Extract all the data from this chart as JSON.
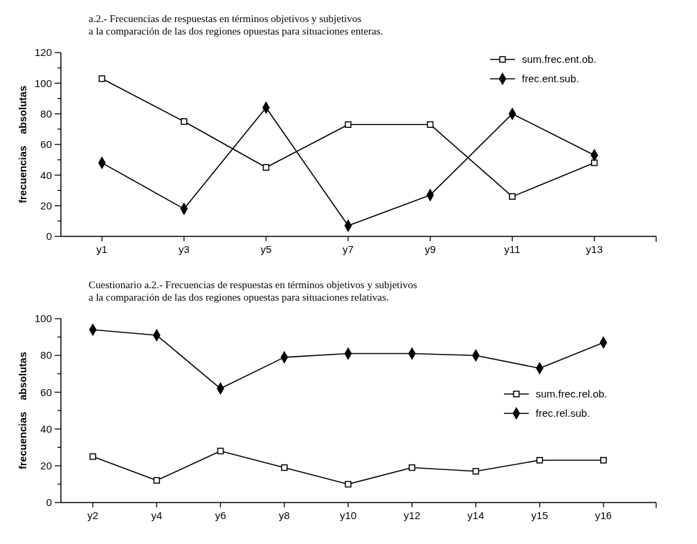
{
  "chart_data": [
    {
      "type": "line",
      "title": "a.2.- Frecuencias de respuestas en términos objetivos y subjetivos\na la comparación de las dos regiones opuestas para situaciones enteras.",
      "ylabel": "frecuencias    absolutas",
      "categories": [
        "y1",
        "y3",
        "y5",
        "y7",
        "y9",
        "y11",
        "y13"
      ],
      "ylim": [
        0,
        120
      ],
      "yticks": [
        0,
        {
          "value": 10,
          "label": null
        },
        20,
        {
          "value": 30,
          "label": null
        },
        40,
        {
          "value": 50,
          "label": null
        },
        60,
        {
          "value": 70,
          "label": null
        },
        80,
        {
          "value": 90,
          "label": null
        },
        100,
        {
          "value": 110,
          "label": null
        },
        120
      ],
      "legend": "top right",
      "series": [
        {
          "name": "sum.frec.ent.ob.",
          "color": "#000000",
          "marker": "square",
          "values": [
            103,
            75,
            45,
            73,
            73,
            26,
            48
          ]
        },
        {
          "name": "frec.ent.sub.",
          "color": "#000000",
          "marker": "diamond",
          "values": [
            48,
            18,
            84,
            7,
            27,
            80,
            53
          ]
        }
      ]
    },
    {
      "type": "line",
      "title": "Cuestionario a.2.- Frecuencias de respuestas en términos objetivos y subjetivos\na la comparación de las dos regiones opuestas para situaciones relativas.",
      "ylabel": "frecuencias    absolutas",
      "categories": [
        "y2",
        "y4",
        "y6",
        "y8",
        "y10",
        "y12",
        "y14",
        "y15",
        "y16"
      ],
      "ylim": [
        0,
        100
      ],
      "yticks": [
        0,
        {
          "value": 10,
          "label": null
        },
        20,
        {
          "value": 30,
          "label": null
        },
        40,
        {
          "value": 50,
          "label": null
        },
        60,
        {
          "value": 70,
          "label": null
        },
        80,
        {
          "value": 90,
          "label": null
        },
        100
      ],
      "legend": "right",
      "series": [
        {
          "name": "sum.frec.rel.ob.",
          "color": "#000000",
          "marker": "square",
          "values": [
            25,
            12,
            28,
            19,
            10,
            19,
            17,
            23,
            23
          ]
        },
        {
          "name": "frec.rel.sub.",
          "color": "#000000",
          "marker": "diamond",
          "values": [
            94,
            91,
            62,
            79,
            81,
            81,
            80,
            73,
            87
          ]
        }
      ]
    }
  ]
}
